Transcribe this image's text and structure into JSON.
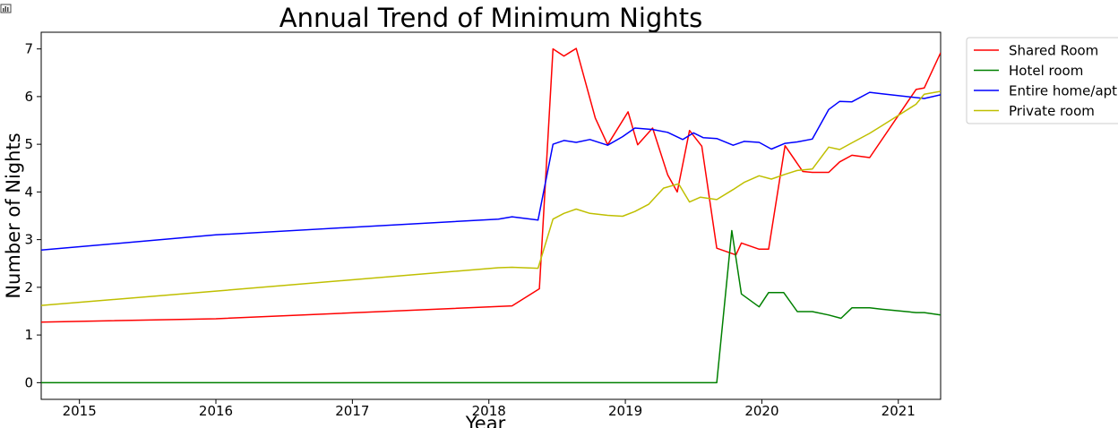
{
  "chart_data": {
    "type": "line",
    "title": "Annual Trend of Minimum Nights",
    "xlabel": "Year",
    "ylabel": "Number of Nights",
    "xlim": [
      2014.72,
      2021.31
    ],
    "ylim": [
      -0.35,
      7.35
    ],
    "xticks": [
      "2015",
      "2016",
      "2017",
      "2018",
      "2019",
      "2020",
      "2021"
    ],
    "yticks": [
      "0",
      "1",
      "2",
      "3",
      "4",
      "5",
      "6",
      "7"
    ],
    "grid": false,
    "legend_position": "outside-top-right",
    "series": [
      {
        "name": "Shared Room",
        "color": "#ff0000",
        "x": [
          2014.72,
          2016.0,
          2018.17,
          2018.37,
          2018.47,
          2018.55,
          2018.64,
          2018.78,
          2018.87,
          2019.02,
          2019.09,
          2019.2,
          2019.31,
          2019.38,
          2019.47,
          2019.56,
          2019.67,
          2019.81,
          2019.85,
          2019.98,
          2020.05,
          2020.17,
          2020.3,
          2020.37,
          2020.49,
          2020.57,
          2020.66,
          2020.79,
          2021.13,
          2021.19,
          2021.31
        ],
        "y": [
          1.27,
          1.34,
          1.61,
          1.97,
          7.0,
          6.85,
          7.01,
          5.55,
          4.99,
          5.68,
          4.99,
          5.34,
          4.36,
          4.0,
          5.29,
          4.96,
          2.82,
          2.68,
          2.93,
          2.8,
          2.8,
          4.97,
          4.43,
          4.41,
          4.41,
          4.63,
          4.77,
          4.72,
          6.15,
          6.18,
          6.92
        ]
      },
      {
        "name": "Hotel room",
        "color": "#008000",
        "x": [
          2014.72,
          2019.67,
          2019.78,
          2019.85,
          2019.98,
          2020.05,
          2020.16,
          2020.26,
          2020.37,
          2020.49,
          2020.58,
          2020.66,
          2020.79,
          2020.88,
          2021.13,
          2021.19,
          2021.31
        ],
        "y": [
          0.0,
          0.0,
          3.19,
          1.86,
          1.59,
          1.89,
          1.89,
          1.49,
          1.49,
          1.42,
          1.35,
          1.57,
          1.57,
          1.54,
          1.47,
          1.47,
          1.42
        ]
      },
      {
        "name": "Entire home/apt",
        "color": "#0000ff",
        "x": [
          2014.72,
          2016.0,
          2018.07,
          2018.17,
          2018.36,
          2018.47,
          2018.55,
          2018.64,
          2018.74,
          2018.87,
          2018.98,
          2019.07,
          2019.2,
          2019.31,
          2019.42,
          2019.5,
          2019.57,
          2019.67,
          2019.79,
          2019.87,
          2019.98,
          2020.07,
          2020.17,
          2020.26,
          2020.37,
          2020.49,
          2020.57,
          2020.66,
          2020.79,
          2020.88,
          2021.19,
          2021.31
        ],
        "y": [
          2.78,
          3.1,
          3.43,
          3.48,
          3.41,
          5.0,
          5.08,
          5.04,
          5.1,
          4.98,
          5.16,
          5.34,
          5.31,
          5.25,
          5.1,
          5.24,
          5.14,
          5.12,
          4.98,
          5.06,
          5.04,
          4.9,
          5.02,
          5.05,
          5.11,
          5.73,
          5.9,
          5.89,
          6.09,
          6.06,
          5.96,
          6.04
        ]
      },
      {
        "name": "Private room",
        "color": "#bfbf00",
        "x": [
          2014.72,
          2016.0,
          2018.07,
          2018.17,
          2018.36,
          2018.47,
          2018.55,
          2018.64,
          2018.74,
          2018.87,
          2018.98,
          2019.07,
          2019.17,
          2019.28,
          2019.39,
          2019.47,
          2019.55,
          2019.67,
          2019.79,
          2019.87,
          2019.98,
          2020.07,
          2020.17,
          2020.26,
          2020.37,
          2020.49,
          2020.57,
          2020.66,
          2020.79,
          2020.88,
          2021.13,
          2021.19,
          2021.31
        ],
        "y": [
          1.62,
          1.92,
          2.41,
          2.42,
          2.4,
          3.43,
          3.55,
          3.64,
          3.55,
          3.51,
          3.49,
          3.59,
          3.74,
          4.08,
          4.17,
          3.79,
          3.89,
          3.84,
          4.05,
          4.2,
          4.34,
          4.27,
          4.37,
          4.45,
          4.48,
          4.94,
          4.89,
          5.03,
          5.23,
          5.39,
          5.84,
          6.05,
          6.11
        ]
      }
    ]
  },
  "toolbar": {
    "icon": "bar-chart-icon"
  }
}
